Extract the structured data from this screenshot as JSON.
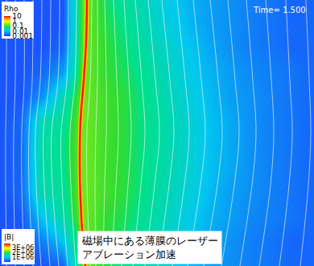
{
  "chart_data": {
    "type": "heatmap",
    "title": "Time= 1.500",
    "caption": [
      "磁場中にある薄膜のレーザー",
      "アブレーション加速"
    ],
    "tick_labels": false,
    "log": true,
    "xlim": [
      0,
      390
    ],
    "ylim": [
      0,
      331
    ],
    "x": [
      0,
      26,
      52,
      78,
      104,
      130,
      156,
      182,
      208,
      234,
      260,
      286,
      312,
      338,
      364,
      390
    ],
    "y": [
      0,
      30,
      60,
      90,
      120,
      150,
      180,
      210,
      240,
      270,
      300,
      330
    ],
    "rho_label": "Rho",
    "rho_lim": [
      0.001,
      10
    ],
    "rho_ticks": [
      10,
      1,
      0.1,
      0.01,
      0.001
    ],
    "rho": [
      [
        0.0015,
        0.0015,
        0.0015,
        0.0015,
        0.2,
        0.08,
        0.05,
        0.025,
        0.012,
        0.007,
        0.005,
        0.004,
        0.003,
        0.0025,
        0.002,
        0.002
      ],
      [
        0.0015,
        0.0015,
        0.0015,
        0.0015,
        0.2,
        0.09,
        0.06,
        0.03,
        0.014,
        0.008,
        0.005,
        0.004,
        0.003,
        0.0025,
        0.002,
        0.002
      ],
      [
        0.0015,
        0.0015,
        0.0015,
        0.002,
        0.2,
        0.1,
        0.07,
        0.04,
        0.02,
        0.01,
        0.006,
        0.004,
        0.003,
        0.0025,
        0.002,
        0.002
      ],
      [
        0.0015,
        0.0015,
        0.002,
        0.005,
        0.2,
        0.1,
        0.08,
        0.05,
        0.025,
        0.012,
        0.007,
        0.005,
        0.0035,
        0.003,
        0.0025,
        0.002
      ],
      [
        0.0015,
        0.0015,
        0.004,
        0.03,
        0.2,
        0.12,
        0.09,
        0.06,
        0.03,
        0.015,
        0.008,
        0.005,
        0.004,
        0.003,
        0.0025,
        0.002
      ],
      [
        0.0015,
        0.002,
        0.03,
        0.05,
        0.2,
        0.12,
        0.09,
        0.06,
        0.035,
        0.018,
        0.009,
        0.006,
        0.004,
        0.003,
        0.0025,
        0.002
      ],
      [
        0.0015,
        0.002,
        0.04,
        0.06,
        0.2,
        0.12,
        0.09,
        0.06,
        0.035,
        0.018,
        0.009,
        0.006,
        0.004,
        0.003,
        0.0025,
        0.002
      ],
      [
        0.0015,
        0.002,
        0.04,
        0.06,
        0.2,
        0.12,
        0.09,
        0.06,
        0.035,
        0.018,
        0.009,
        0.006,
        0.004,
        0.003,
        0.0025,
        0.002
      ],
      [
        0.0015,
        0.002,
        0.035,
        0.05,
        0.2,
        0.12,
        0.09,
        0.06,
        0.03,
        0.016,
        0.008,
        0.005,
        0.004,
        0.003,
        0.0025,
        0.002
      ],
      [
        0.0015,
        0.0015,
        0.01,
        0.04,
        0.2,
        0.1,
        0.08,
        0.05,
        0.025,
        0.012,
        0.007,
        0.005,
        0.0035,
        0.003,
        0.0025,
        0.002
      ],
      [
        0.0015,
        0.0015,
        0.003,
        0.01,
        0.2,
        0.1,
        0.07,
        0.04,
        0.02,
        0.01,
        0.006,
        0.004,
        0.003,
        0.0025,
        0.002,
        0.002
      ],
      [
        0.0015,
        0.0015,
        0.0015,
        0.002,
        0.2,
        0.09,
        0.06,
        0.03,
        0.015,
        0.008,
        0.005,
        0.004,
        0.003,
        0.0025,
        0.002,
        0.002
      ]
    ],
    "b_label": "|B|",
    "b_lim": [
      0,
      3900000
    ],
    "b_ticks": [
      {
        "value": 3000000,
        "label": "3E+06"
      },
      {
        "value": 2000000,
        "label": "2E+06"
      },
      {
        "value": 1000000,
        "label": "1E+06"
      }
    ],
    "film": {
      "color": "#ff1a00",
      "x": [
        108,
        107,
        104,
        100,
        99,
        100,
        103,
        106
      ],
      "y": [
        0,
        50,
        100,
        150,
        200,
        250,
        300,
        331
      ]
    },
    "field_lines": {
      "color": "#ffffff",
      "y": [
        0,
        100,
        165,
        230,
        331
      ],
      "lines": [
        [
          8,
          8,
          7,
          7,
          8
        ],
        [
          19,
          19,
          17,
          17,
          19
        ],
        [
          30,
          30,
          27,
          27,
          30
        ],
        [
          41,
          40,
          36,
          36,
          41
        ],
        [
          52,
          50,
          44,
          45,
          51
        ],
        [
          63,
          61,
          54,
          55,
          62
        ],
        [
          74,
          72,
          64,
          65,
          73
        ],
        [
          85,
          83,
          76,
          77,
          84
        ],
        [
          95,
          93,
          87,
          88,
          94
        ],
        [
          114,
          112,
          108,
          108,
          112
        ],
        [
          121,
          121,
          119,
          118,
          119
        ],
        [
          130,
          132,
          132,
          130,
          128
        ],
        [
          141,
          145,
          147,
          144,
          138
        ],
        [
          154,
          160,
          163,
          159,
          151
        ],
        [
          168,
          176,
          180,
          175,
          165
        ],
        [
          184,
          193,
          198,
          192,
          180
        ],
        [
          201,
          211,
          216,
          210,
          196
        ],
        [
          220,
          230,
          235,
          229,
          214
        ],
        [
          240,
          250,
          255,
          249,
          233
        ],
        [
          261,
          271,
          276,
          270,
          253
        ],
        [
          283,
          292,
          297,
          291,
          275
        ],
        [
          306,
          314,
          318,
          313,
          298
        ],
        [
          330,
          337,
          340,
          336,
          322
        ],
        [
          355,
          360,
          363,
          359,
          347
        ],
        [
          380,
          384,
          386,
          383,
          373
        ]
      ]
    }
  }
}
